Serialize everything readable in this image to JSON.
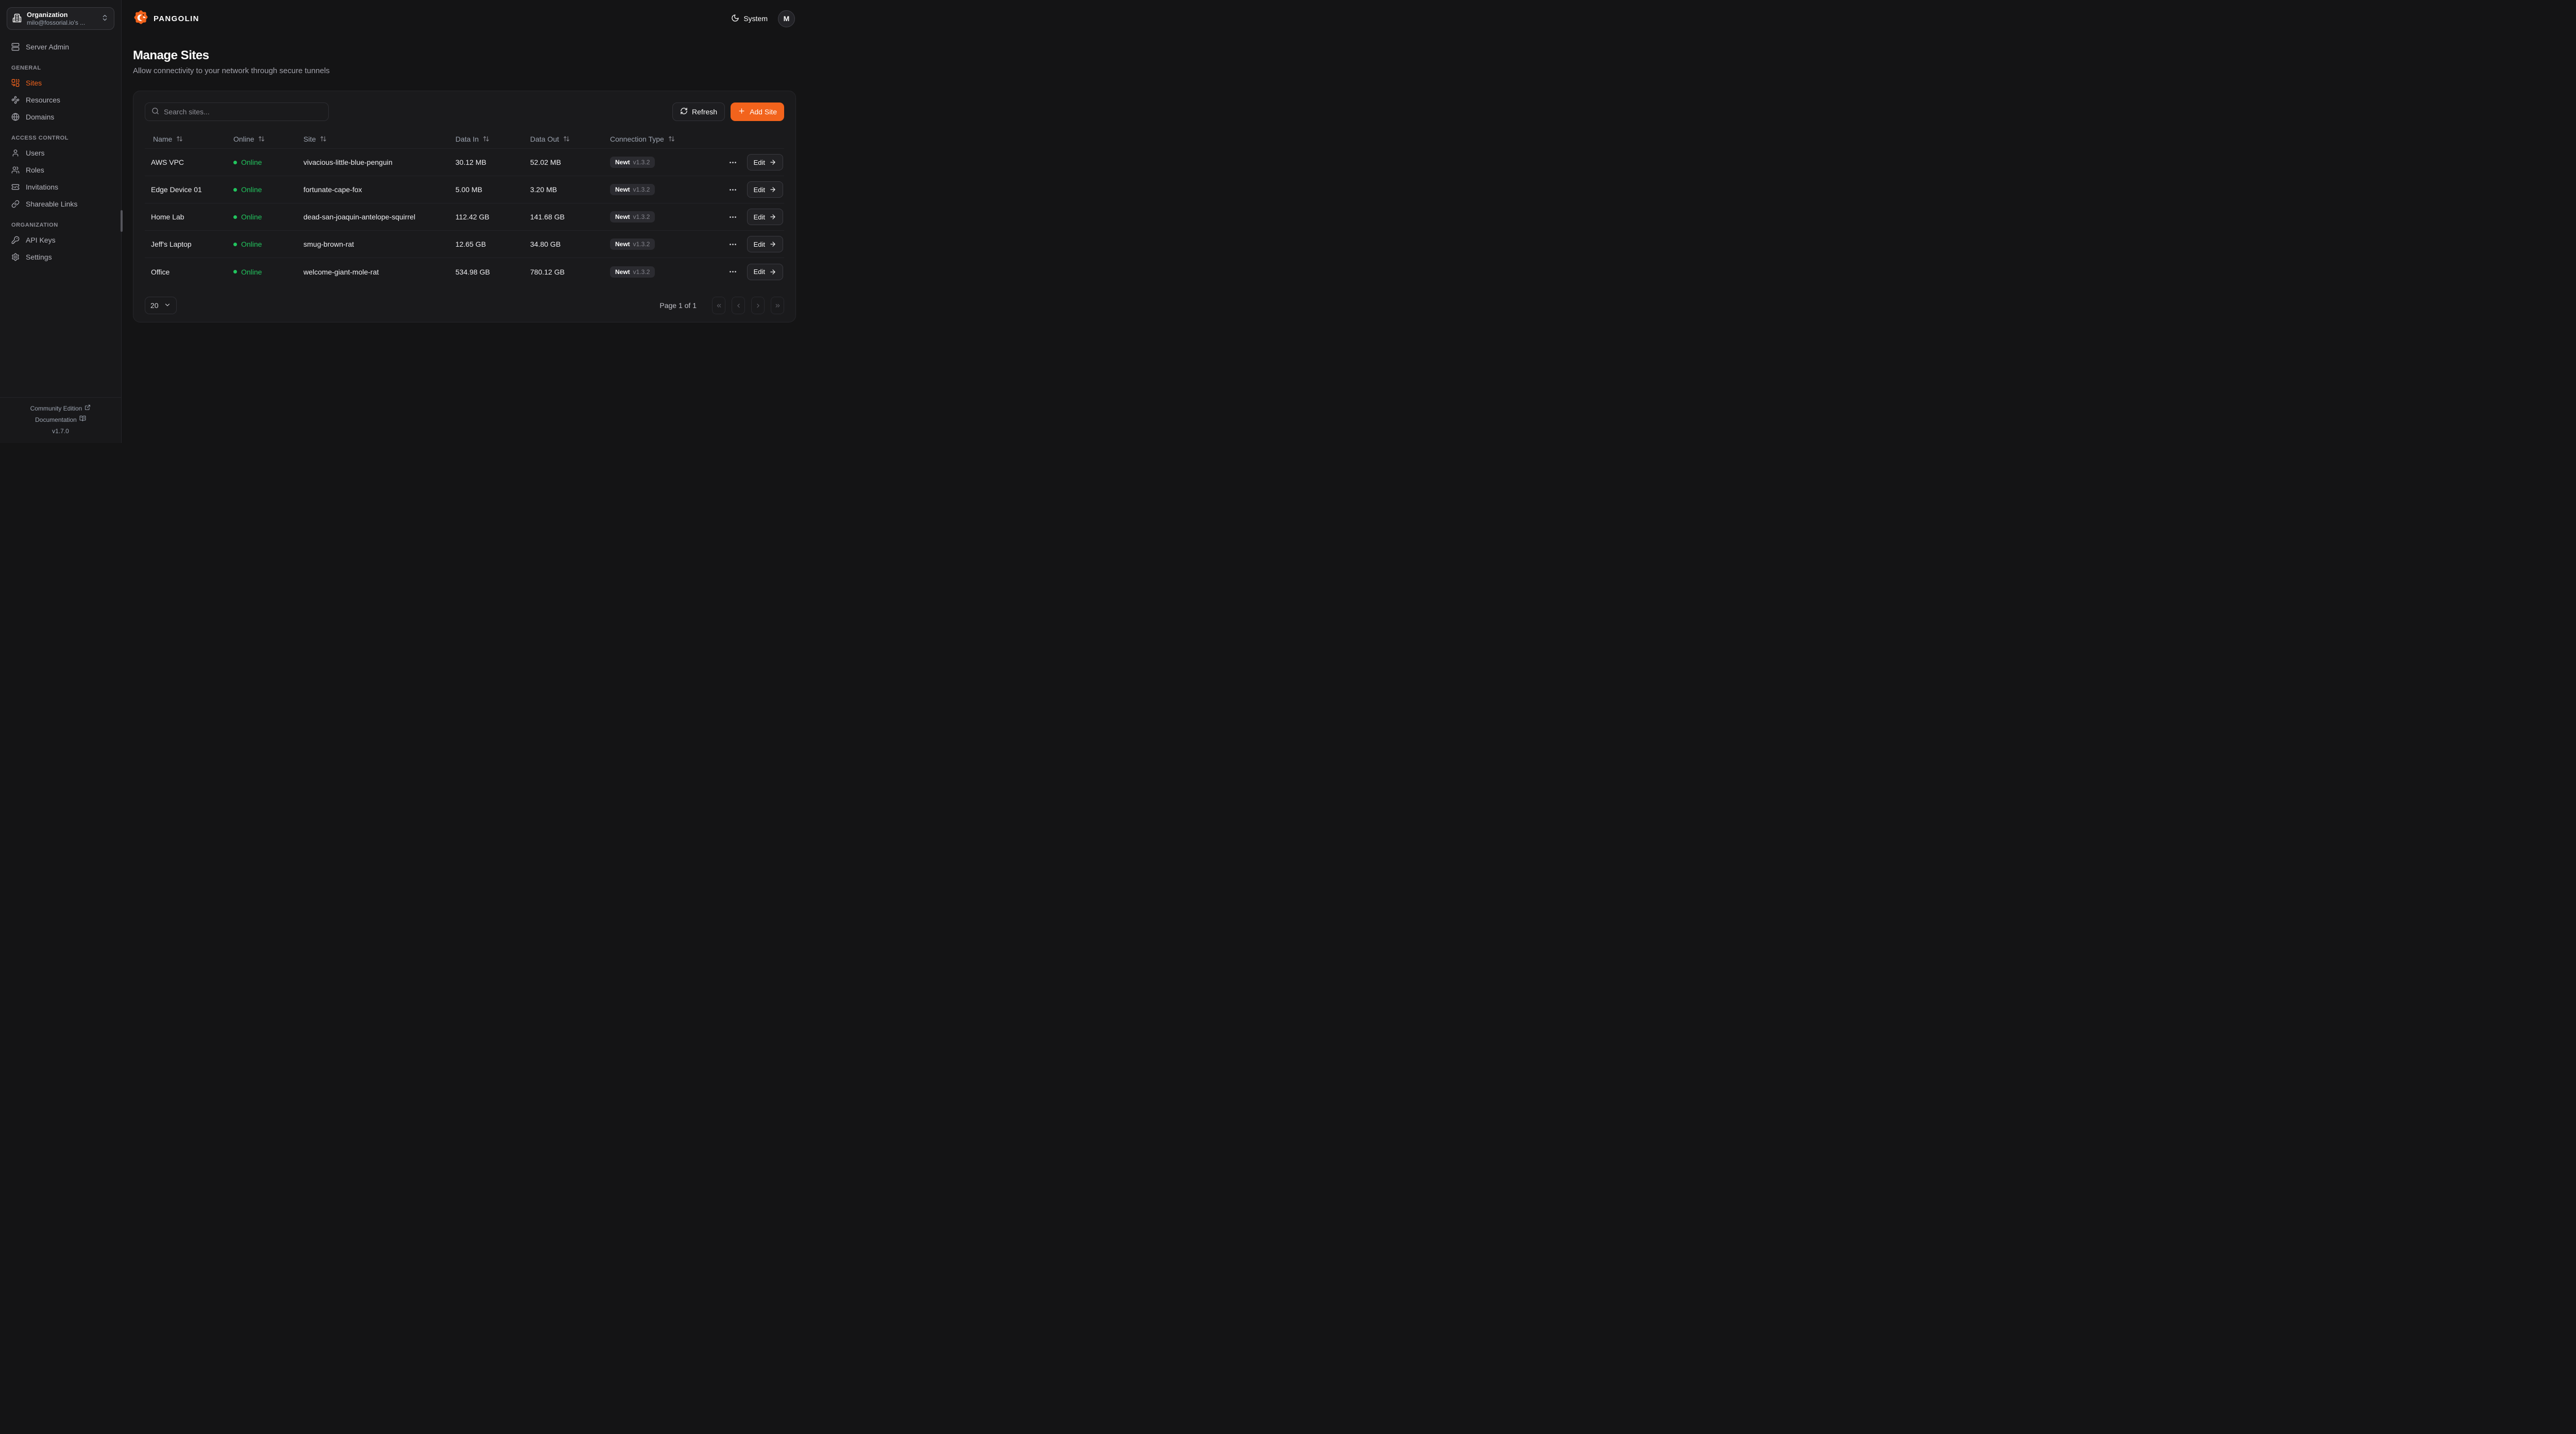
{
  "app": {
    "brand": "PANGOLIN",
    "theme_label": "System",
    "avatar_initial": "M"
  },
  "colors": {
    "accent": "#f2631c",
    "online": "#22c55e"
  },
  "sidebar": {
    "org_selector": {
      "title": "Organization",
      "value": "milo@fossorial.io's ..."
    },
    "top_items": [
      {
        "label": "Server Admin",
        "icon": "server"
      }
    ],
    "sections": [
      {
        "label": "GENERAL",
        "items": [
          {
            "label": "Sites",
            "icon": "combine",
            "active": true
          },
          {
            "label": "Resources",
            "icon": "waypoints"
          },
          {
            "label": "Domains",
            "icon": "globe"
          }
        ]
      },
      {
        "label": "ACCESS CONTROL",
        "items": [
          {
            "label": "Users",
            "icon": "user"
          },
          {
            "label": "Roles",
            "icon": "users"
          },
          {
            "label": "Invitations",
            "icon": "ticket-check"
          },
          {
            "label": "Shareable Links",
            "icon": "link"
          }
        ]
      },
      {
        "label": "ORGANIZATION",
        "items": [
          {
            "label": "API Keys",
            "icon": "key"
          },
          {
            "label": "Settings",
            "icon": "gear"
          }
        ]
      }
    ],
    "footer": {
      "community": "Community Edition",
      "docs": "Documentation",
      "version": "v1.7.0"
    }
  },
  "page": {
    "title": "Manage Sites",
    "subtitle": "Allow connectivity to your network through secure tunnels"
  },
  "toolbar": {
    "search_placeholder": "Search sites...",
    "refresh_label": "Refresh",
    "add_site_label": "Add Site"
  },
  "table": {
    "columns": [
      "Name",
      "Online",
      "Site",
      "Data In",
      "Data Out",
      "Connection Type"
    ],
    "edit_label": "Edit",
    "rows": [
      {
        "name": "AWS VPC",
        "status": "Online",
        "site": "vivacious-little-blue-penguin",
        "data_in": "30.12 MB",
        "data_out": "52.02 MB",
        "conn_type": "Newt",
        "conn_version": "v1.3.2"
      },
      {
        "name": "Edge Device 01",
        "status": "Online",
        "site": "fortunate-cape-fox",
        "data_in": "5.00 MB",
        "data_out": "3.20 MB",
        "conn_type": "Newt",
        "conn_version": "v1.3.2"
      },
      {
        "name": "Home Lab",
        "status": "Online",
        "site": "dead-san-joaquin-antelope-squirrel",
        "data_in": "112.42 GB",
        "data_out": "141.68 GB",
        "conn_type": "Newt",
        "conn_version": "v1.3.2"
      },
      {
        "name": "Jeff's Laptop",
        "status": "Online",
        "site": "smug-brown-rat",
        "data_in": "12.65 GB",
        "data_out": "34.80 GB",
        "conn_type": "Newt",
        "conn_version": "v1.3.2"
      },
      {
        "name": "Office",
        "status": "Online",
        "site": "welcome-giant-mole-rat",
        "data_in": "534.98 GB",
        "data_out": "780.12 GB",
        "conn_type": "Newt",
        "conn_version": "v1.3.2"
      }
    ]
  },
  "pagination": {
    "page_size": "20",
    "page_info": "Page 1 of 1"
  }
}
